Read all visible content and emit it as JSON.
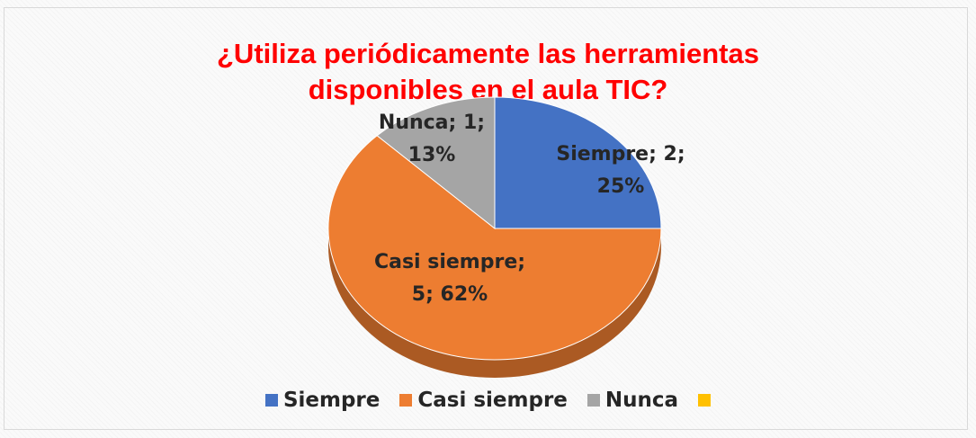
{
  "chart_data": {
    "type": "pie",
    "title_lines": [
      "¿Utiliza periódicamente las herramientas",
      "disponibles en el aula TIC?"
    ],
    "categories": [
      "Siempre",
      "Casi siempre",
      "Nunca",
      null
    ],
    "values": [
      2,
      5,
      1,
      null
    ],
    "value_labels": [
      "Siempre; 2; 25%",
      "Casi siempre; 5; 62%",
      "Nunca; 1; 13%",
      null
    ],
    "colors": [
      "#4472c4",
      "#ed7d31",
      "#a5a5a5",
      "#ffc000"
    ],
    "legend": "bottom"
  }
}
